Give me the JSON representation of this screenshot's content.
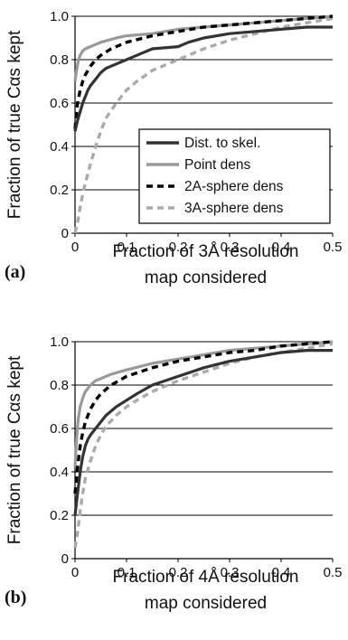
{
  "chart_data": [
    {
      "type": "line",
      "panel_label": "(a)",
      "xlabel_lines": [
        "Fraction of 3Å resolution",
        "map considered"
      ],
      "ylabel": "Fraction of true Cαs kept",
      "xlim": [
        0,
        0.5
      ],
      "ylim": [
        0,
        1.0
      ],
      "xticks": [
        "0",
        "0.1",
        "0.2",
        "0.3",
        "0.4",
        "0.5"
      ],
      "yticks": [
        "0",
        "0.2",
        "0.4",
        "0.6",
        "0.8",
        "1.0"
      ],
      "grid": "horizontal",
      "legend_position": "inside-lower-right",
      "series": [
        {
          "name": "Dist. to skel.",
          "color": "#333333",
          "style": "solid",
          "x": [
            0.0,
            0.005,
            0.01,
            0.015,
            0.02,
            0.025,
            0.03,
            0.04,
            0.05,
            0.06,
            0.07,
            0.08,
            0.1,
            0.12,
            0.15,
            0.2,
            0.22,
            0.25,
            0.3,
            0.35,
            0.4,
            0.45,
            0.5
          ],
          "y": [
            0.47,
            0.52,
            0.56,
            0.6,
            0.63,
            0.66,
            0.68,
            0.71,
            0.74,
            0.76,
            0.77,
            0.78,
            0.8,
            0.82,
            0.85,
            0.86,
            0.88,
            0.9,
            0.92,
            0.93,
            0.94,
            0.95,
            0.95
          ]
        },
        {
          "name": "Point dens",
          "color": "#999999",
          "style": "solid",
          "x": [
            0.0,
            0.003,
            0.006,
            0.01,
            0.015,
            0.02,
            0.03,
            0.05,
            0.08,
            0.1,
            0.15,
            0.2,
            0.25,
            0.3,
            0.35,
            0.4,
            0.45,
            0.5
          ],
          "y": [
            0.7,
            0.75,
            0.79,
            0.82,
            0.84,
            0.85,
            0.86,
            0.88,
            0.9,
            0.91,
            0.92,
            0.94,
            0.95,
            0.96,
            0.97,
            0.98,
            0.99,
            1.0
          ]
        },
        {
          "name": "2A-sphere dens",
          "color": "#000000",
          "style": "dashed",
          "x": [
            0.0,
            0.005,
            0.01,
            0.015,
            0.02,
            0.03,
            0.04,
            0.05,
            0.07,
            0.1,
            0.15,
            0.2,
            0.25,
            0.3,
            0.35,
            0.4,
            0.45,
            0.5
          ],
          "y": [
            0.48,
            0.6,
            0.66,
            0.7,
            0.73,
            0.77,
            0.8,
            0.82,
            0.85,
            0.88,
            0.91,
            0.93,
            0.95,
            0.96,
            0.97,
            0.98,
            0.99,
            1.0
          ]
        },
        {
          "name": "3A-sphere dens",
          "color": "#aaaaaa",
          "style": "dashed",
          "x": [
            0.0,
            0.005,
            0.01,
            0.015,
            0.02,
            0.03,
            0.04,
            0.05,
            0.06,
            0.08,
            0.1,
            0.12,
            0.15,
            0.2,
            0.25,
            0.3,
            0.35,
            0.4,
            0.45,
            0.5
          ],
          "y": [
            0.0,
            0.05,
            0.12,
            0.18,
            0.23,
            0.32,
            0.4,
            0.47,
            0.53,
            0.6,
            0.66,
            0.7,
            0.75,
            0.8,
            0.85,
            0.89,
            0.92,
            0.95,
            0.97,
            0.99
          ]
        }
      ]
    },
    {
      "type": "line",
      "panel_label": "(b)",
      "xlabel_lines": [
        "Fraction of 4Å resolution",
        "map considered"
      ],
      "ylabel": "Fraction of true Cαs kept",
      "xlim": [
        0,
        0.5
      ],
      "ylim": [
        0,
        1.0
      ],
      "xticks": [
        "0",
        "0.1",
        "0.2",
        "0.3",
        "0.4",
        "0.5"
      ],
      "yticks": [
        "0",
        "0.2",
        "0.4",
        "0.6",
        "0.8",
        "1.0"
      ],
      "grid": "horizontal",
      "series": [
        {
          "name": "Dist. to skel.",
          "color": "#333333",
          "style": "solid",
          "x": [
            0.0,
            0.005,
            0.01,
            0.015,
            0.02,
            0.025,
            0.03,
            0.04,
            0.05,
            0.06,
            0.07,
            0.08,
            0.1,
            0.12,
            0.15,
            0.2,
            0.25,
            0.3,
            0.35,
            0.4,
            0.45,
            0.5
          ],
          "y": [
            0.2,
            0.3,
            0.4,
            0.47,
            0.52,
            0.55,
            0.57,
            0.6,
            0.63,
            0.66,
            0.68,
            0.7,
            0.73,
            0.76,
            0.8,
            0.84,
            0.88,
            0.91,
            0.93,
            0.95,
            0.96,
            0.96
          ]
        },
        {
          "name": "Point dens",
          "color": "#999999",
          "style": "solid",
          "x": [
            0.0,
            0.003,
            0.006,
            0.01,
            0.015,
            0.02,
            0.03,
            0.04,
            0.05,
            0.07,
            0.1,
            0.15,
            0.2,
            0.25,
            0.3,
            0.35,
            0.4,
            0.45,
            0.5
          ],
          "y": [
            0.42,
            0.55,
            0.64,
            0.7,
            0.74,
            0.77,
            0.8,
            0.82,
            0.83,
            0.85,
            0.87,
            0.9,
            0.92,
            0.94,
            0.96,
            0.97,
            0.98,
            0.99,
            1.0
          ]
        },
        {
          "name": "2A-sphere dens",
          "color": "#000000",
          "style": "dashed",
          "x": [
            0.0,
            0.005,
            0.01,
            0.015,
            0.02,
            0.03,
            0.04,
            0.05,
            0.07,
            0.1,
            0.15,
            0.2,
            0.25,
            0.3,
            0.35,
            0.4,
            0.45,
            0.5
          ],
          "y": [
            0.3,
            0.42,
            0.52,
            0.58,
            0.63,
            0.69,
            0.73,
            0.76,
            0.8,
            0.84,
            0.88,
            0.91,
            0.93,
            0.95,
            0.96,
            0.98,
            0.99,
            1.0
          ]
        },
        {
          "name": "3A-sphere dens",
          "color": "#aaaaaa",
          "style": "dashed",
          "x": [
            0.0,
            0.005,
            0.01,
            0.015,
            0.02,
            0.03,
            0.04,
            0.05,
            0.06,
            0.08,
            0.1,
            0.12,
            0.15,
            0.2,
            0.25,
            0.3,
            0.35,
            0.4,
            0.45,
            0.5
          ],
          "y": [
            0.05,
            0.12,
            0.22,
            0.3,
            0.37,
            0.45,
            0.52,
            0.57,
            0.61,
            0.66,
            0.7,
            0.73,
            0.77,
            0.82,
            0.86,
            0.9,
            0.93,
            0.95,
            0.97,
            0.99
          ]
        }
      ]
    }
  ]
}
